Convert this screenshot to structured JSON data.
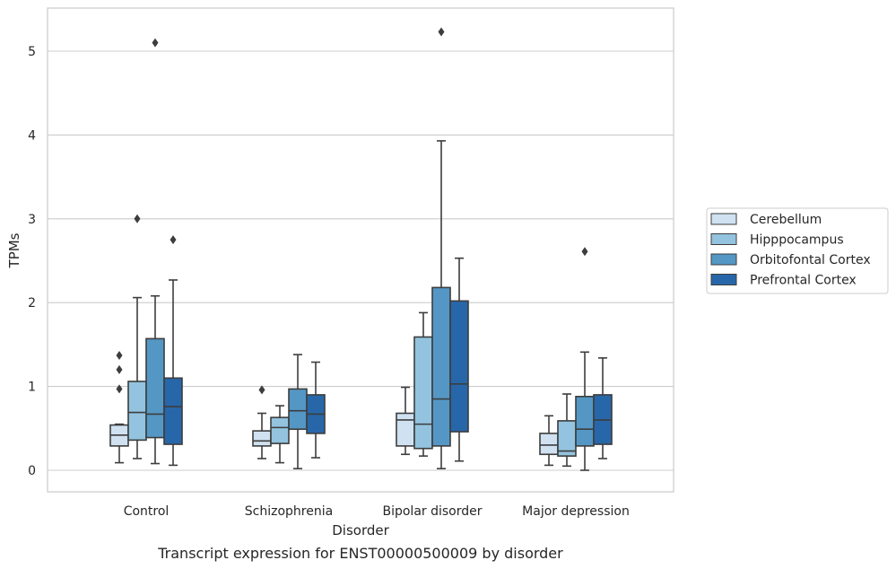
{
  "chart_data": {
    "type": "box",
    "xlabel": "Disorder",
    "ylabel": "TPMs",
    "caption": "Transcript expression for ENST00000500009 by disorder",
    "ylim": [
      -0.25,
      5.5
    ],
    "yticks": [
      0,
      1,
      2,
      3,
      4,
      5
    ],
    "grid": "horizontal",
    "legend_position": "right",
    "categories": [
      "Control",
      "Schizophrenia",
      "Bipolar disorder",
      "Major depression"
    ],
    "series": [
      {
        "name": "Cerebellum",
        "color": "#d0e1f1",
        "boxes": [
          {
            "whisker_low": 0.09,
            "q1": 0.29,
            "median": 0.42,
            "q3": 0.54,
            "whisker_high": 0.55,
            "outliers": [
              0.97,
              1.2,
              1.37
            ]
          },
          {
            "whisker_low": 0.14,
            "q1": 0.29,
            "median": 0.35,
            "q3": 0.47,
            "whisker_high": 0.68,
            "outliers": [
              0.96
            ]
          },
          {
            "whisker_low": 0.19,
            "q1": 0.29,
            "median": 0.6,
            "q3": 0.68,
            "whisker_high": 0.99,
            "outliers": []
          },
          {
            "whisker_low": 0.06,
            "q1": 0.19,
            "median": 0.3,
            "q3": 0.44,
            "whisker_high": 0.65,
            "outliers": []
          }
        ]
      },
      {
        "name": "Hipppocampus",
        "color": "#93c3df",
        "boxes": [
          {
            "whisker_low": 0.14,
            "q1": 0.36,
            "median": 0.69,
            "q3": 1.06,
            "whisker_high": 2.06,
            "outliers": [
              3.0
            ]
          },
          {
            "whisker_low": 0.09,
            "q1": 0.32,
            "median": 0.51,
            "q3": 0.63,
            "whisker_high": 0.77,
            "outliers": []
          },
          {
            "whisker_low": 0.17,
            "q1": 0.26,
            "median": 0.55,
            "q3": 1.59,
            "whisker_high": 1.88,
            "outliers": []
          },
          {
            "whisker_low": 0.05,
            "q1": 0.17,
            "median": 0.23,
            "q3": 0.59,
            "whisker_high": 0.91,
            "outliers": []
          }
        ]
      },
      {
        "name": "Orbitofontal Cortex",
        "color": "#5497c5",
        "boxes": [
          {
            "whisker_low": 0.08,
            "q1": 0.39,
            "median": 0.67,
            "q3": 1.57,
            "whisker_high": 2.08,
            "outliers": [
              5.1
            ]
          },
          {
            "whisker_low": 0.02,
            "q1": 0.49,
            "median": 0.71,
            "q3": 0.97,
            "whisker_high": 1.38,
            "outliers": []
          },
          {
            "whisker_low": 0.02,
            "q1": 0.29,
            "median": 0.85,
            "q3": 2.18,
            "whisker_high": 3.93,
            "outliers": [
              5.23
            ]
          },
          {
            "whisker_low": 0.0,
            "q1": 0.29,
            "median": 0.49,
            "q3": 0.88,
            "whisker_high": 1.41,
            "outliers": [
              2.61
            ]
          }
        ]
      },
      {
        "name": "Prefrontal Cortex",
        "color": "#2767a9",
        "boxes": [
          {
            "whisker_low": 0.06,
            "q1": 0.31,
            "median": 0.76,
            "q3": 1.1,
            "whisker_high": 2.27,
            "outliers": [
              2.75
            ]
          },
          {
            "whisker_low": 0.15,
            "q1": 0.44,
            "median": 0.67,
            "q3": 0.9,
            "whisker_high": 1.29,
            "outliers": []
          },
          {
            "whisker_low": 0.11,
            "q1": 0.46,
            "median": 1.03,
            "q3": 2.02,
            "whisker_high": 2.53,
            "outliers": []
          },
          {
            "whisker_low": 0.14,
            "q1": 0.31,
            "median": 0.6,
            "q3": 0.9,
            "whisker_high": 1.34,
            "outliers": []
          }
        ]
      }
    ]
  }
}
